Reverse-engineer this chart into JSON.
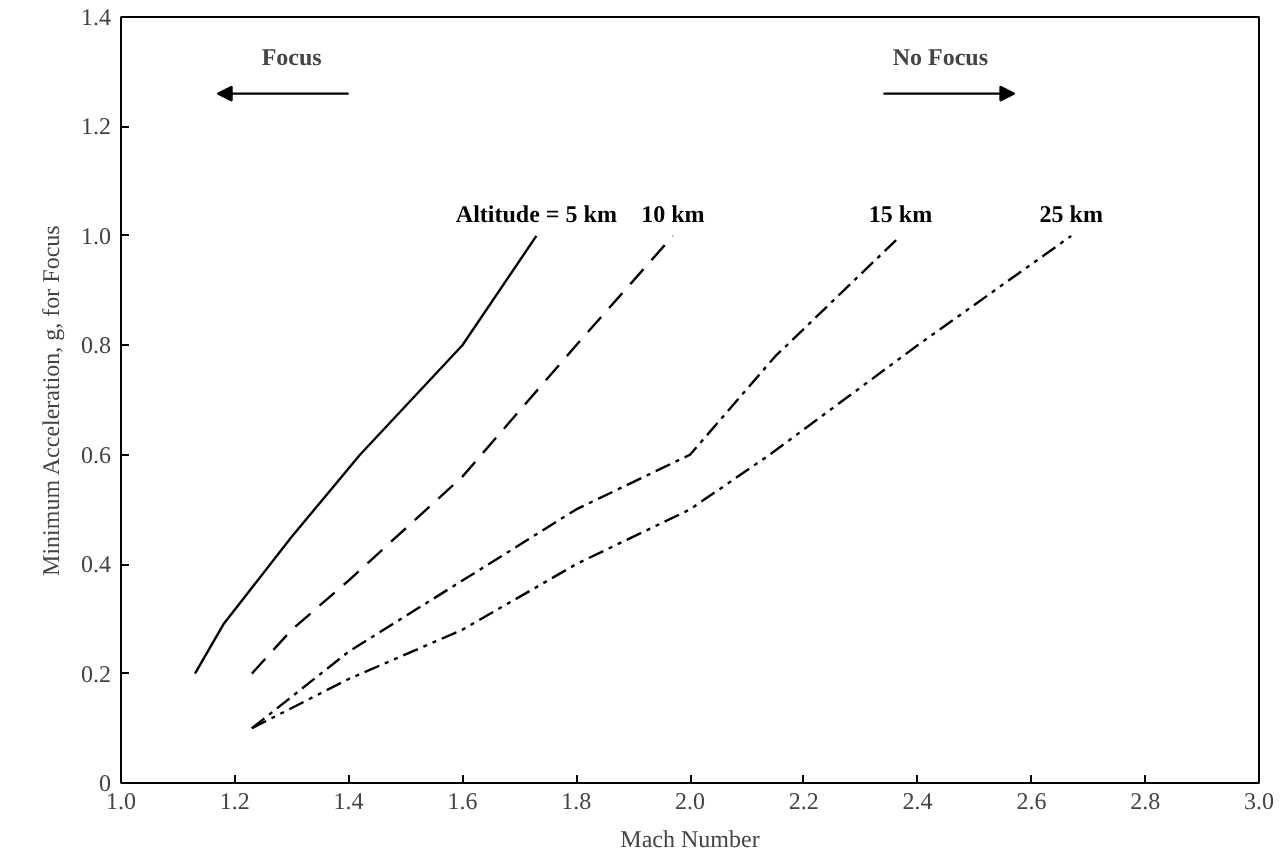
{
  "chart_data": {
    "type": "line",
    "xlabel": "Mach Number",
    "ylabel": "Minimum Acceleration, g, for Focus",
    "xlim": [
      1.0,
      3.0
    ],
    "ylim": [
      0,
      1.4
    ],
    "xticks": [
      {
        "value": 1.0,
        "label": "1.0"
      },
      1.2,
      1.4,
      1.6,
      1.8,
      {
        "value": 2.0,
        "label": "2.0"
      },
      2.2,
      2.4,
      2.6,
      2.8,
      {
        "value": 3.0,
        "label": "3.0"
      }
    ],
    "yticks": [
      0,
      0.2,
      0.4,
      0.6,
      0.8,
      {
        "value": 1.0,
        "label": "1.0"
      },
      1.2,
      1.4
    ],
    "series": [
      {
        "name": "Altitude = 5 km",
        "color": "#000000",
        "line_style": "solid",
        "x": [
          1.13,
          1.18,
          1.3,
          1.42,
          1.6,
          1.73
        ],
        "values": [
          0.2,
          0.29,
          0.45,
          0.6,
          0.8,
          1.0
        ]
      },
      {
        "name": "10 km",
        "color": "#000000",
        "line_style": "dashed",
        "x": [
          1.23,
          1.3,
          1.4,
          1.6,
          1.8,
          1.97
        ],
        "values": [
          0.2,
          0.28,
          0.37,
          0.56,
          0.8,
          1.0
        ]
      },
      {
        "name": "15 km",
        "color": "#000000",
        "line_style": "dashdot",
        "x": [
          1.23,
          1.4,
          1.6,
          1.8,
          2.0,
          2.15,
          2.37
        ],
        "values": [
          0.1,
          0.24,
          0.37,
          0.5,
          0.6,
          0.78,
          1.0
        ]
      },
      {
        "name": "25 km",
        "color": "#000000",
        "line_style": "dashdotdot",
        "x": [
          1.23,
          1.4,
          1.6,
          1.8,
          2.0,
          2.14,
          2.4,
          2.67
        ],
        "values": [
          0.1,
          0.19,
          0.28,
          0.4,
          0.5,
          0.6,
          0.8,
          1.0
        ]
      }
    ],
    "annotations": [
      "Focus",
      "No Focus"
    ]
  }
}
